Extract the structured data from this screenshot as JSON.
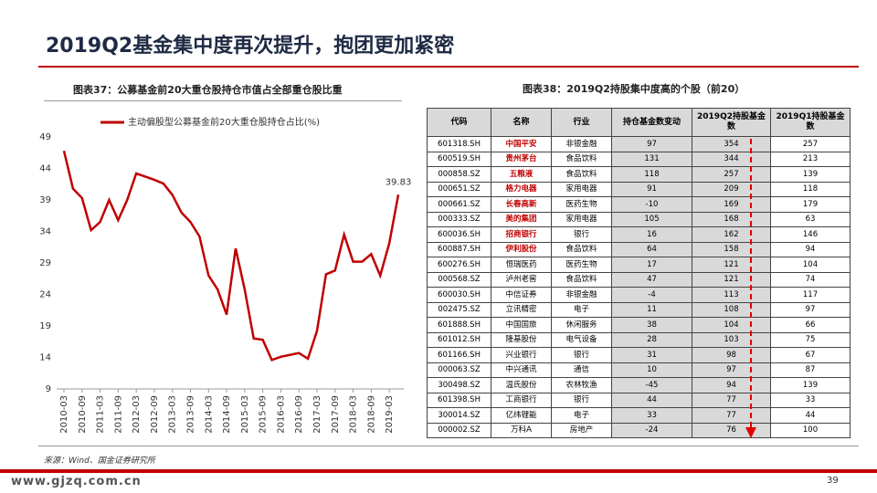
{
  "title": "2019Q2基金集中度再次提升，抱团更加紧密",
  "chart_data": {
    "type": "line",
    "title": "图表37：公募基金前20大重仓股持仓市值占全部重仓股比重",
    "categories": [
      "2010-03",
      null,
      "2010-09",
      null,
      "2011-03",
      null,
      "2011-09",
      null,
      "2012-03",
      null,
      "2012-09",
      null,
      "2013-03",
      null,
      "2013-09",
      null,
      "2014-03",
      null,
      "2014-09",
      null,
      "2015-03",
      null,
      "2015-09",
      null,
      "2016-03",
      null,
      "2016-09",
      null,
      "2017-03",
      null,
      "2017-09",
      null,
      "2018-03",
      null,
      "2018-09",
      null,
      "2019-03",
      null
    ],
    "series": [
      {
        "name": "主动偏股型公募基金前20大重仓股持仓占比(%)",
        "color": "#c00000",
        "values": [
          46.8,
          40.8,
          39.3,
          34.2,
          35.5,
          39,
          35.8,
          39,
          43.2,
          42.7,
          42.2,
          41.6,
          39.8,
          37,
          35.5,
          33.2,
          27,
          24.8,
          20.8,
          31.3,
          24.8,
          17,
          16.8,
          13.6,
          14.1,
          14.4,
          14.7,
          13.8,
          18.2,
          27.2,
          27.8,
          33.5,
          29.2,
          29.2,
          30.4,
          27,
          32.1,
          39.83
        ]
      }
    ],
    "ylim": [
      9,
      49
    ],
    "yticks": [
      9,
      14,
      19,
      24,
      29,
      34,
      39,
      44,
      49
    ],
    "grid": false
  },
  "table": {
    "title": "图表38：2019Q2持股集中度高的个股（前20）",
    "columns": [
      "代码",
      "名称",
      "行业",
      "持仓基金数变动",
      "2019Q2持股基金数",
      "2019Q1持股基金数"
    ],
    "rows": [
      [
        "601318.SH",
        "中国平安",
        "非银金融",
        97,
        354,
        257
      ],
      [
        "600519.SH",
        "贵州茅台",
        "食品饮料",
        131,
        344,
        213
      ],
      [
        "000858.SZ",
        "五粮液",
        "食品饮料",
        118,
        257,
        139
      ],
      [
        "000651.SZ",
        "格力电器",
        "家用电器",
        91,
        209,
        118
      ],
      [
        "000661.SZ",
        "长春高新",
        "医药生物",
        -10,
        169,
        179
      ],
      [
        "000333.SZ",
        "美的集团",
        "家用电器",
        105,
        168,
        63
      ],
      [
        "600036.SH",
        "招商银行",
        "银行",
        16,
        162,
        146
      ],
      [
        "600887.SH",
        "伊利股份",
        "食品饮料",
        64,
        158,
        94
      ],
      [
        "600276.SH",
        "恒瑞医药",
        "医药生物",
        17,
        121,
        104
      ],
      [
        "000568.SZ",
        "泸州老窖",
        "食品饮料",
        47,
        121,
        74
      ],
      [
        "600030.SH",
        "中信证券",
        "非银金融",
        -4,
        113,
        117
      ],
      [
        "002475.SZ",
        "立讯精密",
        "电子",
        11,
        108,
        97
      ],
      [
        "601888.SH",
        "中国国旅",
        "休闲服务",
        38,
        104,
        66
      ],
      [
        "601012.SH",
        "隆基股份",
        "电气设备",
        28,
        103,
        75
      ],
      [
        "601166.SH",
        "兴业银行",
        "银行",
        31,
        98,
        67
      ],
      [
        "000063.SZ",
        "中兴通讯",
        "通信",
        10,
        97,
        87
      ],
      [
        "300498.SZ",
        "温氏股份",
        "农林牧渔",
        -45,
        94,
        139
      ],
      [
        "601398.SH",
        "工商银行",
        "银行",
        44,
        77,
        33
      ],
      [
        "300014.SZ",
        "亿纬锂能",
        "电子",
        33,
        77,
        44
      ],
      [
        "000002.SZ",
        "万科A",
        "房地产",
        -24,
        76,
        100
      ]
    ]
  },
  "source": "来源：Wind、国金证券研究所",
  "page_number": "39",
  "website": "www.gjzq.com.cn"
}
